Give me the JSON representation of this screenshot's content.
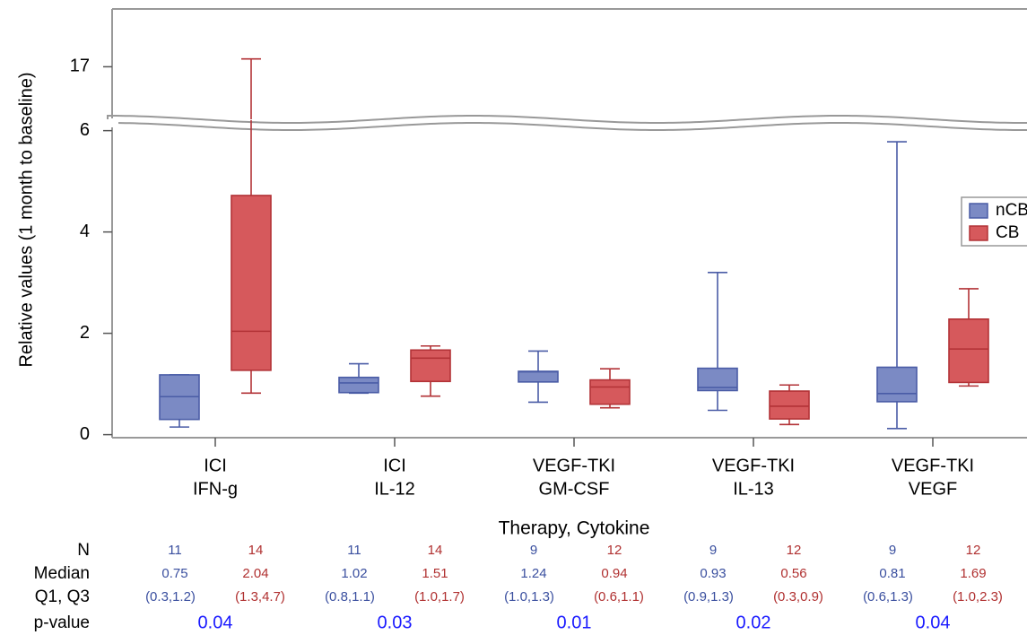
{
  "chart_data": {
    "type": "box",
    "y_label": "Relative values (1 month to baseline)",
    "x_label": "Therapy, Cytokine",
    "categories": [
      [
        "ICI",
        "IFN-g"
      ],
      [
        "ICI",
        "IL-12"
      ],
      [
        "VEGF-TKI",
        "GM-CSF"
      ],
      [
        "VEGF-TKI",
        "IL-13"
      ],
      [
        "VEGF-TKI",
        "VEGF"
      ]
    ],
    "ylim": [
      -0.06,
      6.1
    ],
    "yticks": [
      0,
      2,
      4,
      6
    ],
    "upper_ylim": [
      15,
      19.2
    ],
    "upper_yticks": [
      17
    ],
    "legend_position": "right",
    "series": [
      {
        "name": "nCB",
        "color": "#7b8ac4",
        "stroke": "#4a5ca6",
        "whisker_low": [
          0.15,
          0.82,
          0.64,
          0.48,
          0.12
        ],
        "q1": [
          0.3,
          0.83,
          1.04,
          0.87,
          0.65
        ],
        "median": [
          0.75,
          1.02,
          1.24,
          0.93,
          0.81
        ],
        "q3": [
          1.18,
          1.13,
          1.25,
          1.31,
          1.33
        ],
        "whisker_high": [
          1.18,
          1.4,
          1.65,
          3.2,
          5.78
        ]
      },
      {
        "name": "CB",
        "color": "#d6595c",
        "stroke": "#b23236",
        "whisker_low": [
          0.82,
          0.76,
          0.53,
          0.2,
          0.96
        ],
        "q1": [
          1.27,
          1.05,
          0.6,
          0.31,
          1.03
        ],
        "median": [
          2.04,
          1.51,
          0.94,
          0.56,
          1.69
        ],
        "q3": [
          4.72,
          1.67,
          1.08,
          0.86,
          2.28
        ],
        "whisker_high": [
          17.3,
          1.75,
          1.3,
          0.98,
          2.88
        ]
      }
    ],
    "stats_table": {
      "row_labels": [
        "N",
        "Median",
        "Q1, Q3",
        "p-value"
      ],
      "n": [
        [
          11,
          14
        ],
        [
          11,
          14
        ],
        [
          9,
          12
        ],
        [
          9,
          12
        ],
        [
          9,
          12
        ]
      ],
      "median": [
        [
          0.75,
          2.04
        ],
        [
          1.02,
          1.51
        ],
        [
          1.24,
          0.94
        ],
        [
          0.93,
          0.56
        ],
        [
          0.81,
          1.69
        ]
      ],
      "q1_q3": [
        [
          "(0.3,1.2)",
          "(1.3,4.7)"
        ],
        [
          "(0.8,1.1)",
          "(1.0,1.7)"
        ],
        [
          "(1.0,1.3)",
          "(0.6,1.1)"
        ],
        [
          "(0.9,1.3)",
          "(0.3,0.9)"
        ],
        [
          "(0.6,1.3)",
          "(1.0,2.3)"
        ]
      ],
      "p_values": [
        0.04,
        0.03,
        0.01,
        0.02,
        0.04
      ]
    }
  }
}
